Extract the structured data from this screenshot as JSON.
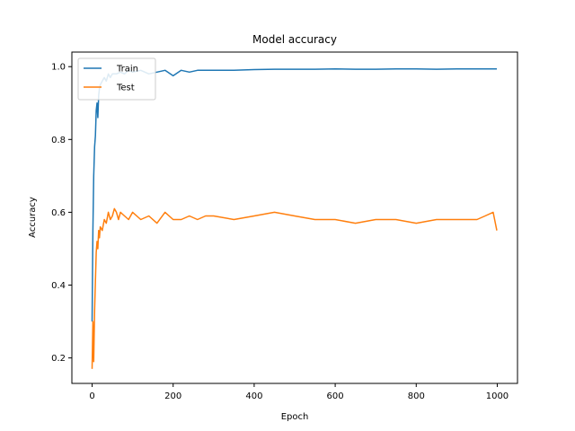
{
  "chart_data": {
    "type": "line",
    "title": "Model accuracy",
    "xlabel": "Epoch",
    "ylabel": "Accuracy",
    "xlim": [
      -50,
      1050
    ],
    "ylim": [
      0.13,
      1.04
    ],
    "xticks": [
      0,
      200,
      400,
      600,
      800,
      1000
    ],
    "yticks": [
      0.2,
      0.4,
      0.6,
      0.8,
      1.0
    ],
    "xtick_labels": [
      "0",
      "200",
      "400",
      "600",
      "800",
      "1000"
    ],
    "ytick_labels": [
      "0.2",
      "0.4",
      "0.6",
      "0.8",
      "1.0"
    ],
    "legend_position": "top-left",
    "grid": false,
    "series": [
      {
        "name": "Train",
        "color": "#1f77b4",
        "x": [
          0,
          2,
          4,
          6,
          8,
          10,
          12,
          14,
          16,
          18,
          20,
          25,
          30,
          35,
          40,
          45,
          50,
          60,
          70,
          80,
          90,
          100,
          120,
          140,
          160,
          180,
          200,
          220,
          240,
          260,
          280,
          300,
          350,
          400,
          450,
          500,
          550,
          600,
          650,
          700,
          750,
          800,
          850,
          900,
          950,
          999
        ],
        "y": [
          0.3,
          0.55,
          0.7,
          0.78,
          0.81,
          0.88,
          0.9,
          0.86,
          0.92,
          0.94,
          0.95,
          0.96,
          0.97,
          0.96,
          0.98,
          0.97,
          0.98,
          0.98,
          0.985,
          0.98,
          0.99,
          0.985,
          0.99,
          0.98,
          0.985,
          0.99,
          0.975,
          0.99,
          0.985,
          0.99,
          0.99,
          0.99,
          0.99,
          0.992,
          0.993,
          0.993,
          0.993,
          0.994,
          0.993,
          0.993,
          0.994,
          0.994,
          0.993,
          0.994,
          0.994,
          0.994
        ]
      },
      {
        "name": "Test",
        "color": "#ff7f0e",
        "x": [
          0,
          2,
          4,
          6,
          8,
          10,
          12,
          14,
          16,
          18,
          20,
          25,
          30,
          35,
          40,
          45,
          50,
          55,
          60,
          65,
          70,
          80,
          90,
          100,
          120,
          140,
          160,
          180,
          200,
          220,
          240,
          260,
          280,
          300,
          350,
          400,
          450,
          500,
          550,
          600,
          650,
          700,
          750,
          800,
          850,
          900,
          950,
          970,
          990,
          999
        ],
        "y": [
          0.17,
          0.3,
          0.19,
          0.33,
          0.41,
          0.49,
          0.52,
          0.5,
          0.55,
          0.53,
          0.56,
          0.55,
          0.58,
          0.57,
          0.6,
          0.58,
          0.59,
          0.61,
          0.6,
          0.58,
          0.6,
          0.59,
          0.58,
          0.6,
          0.58,
          0.59,
          0.57,
          0.6,
          0.58,
          0.58,
          0.59,
          0.58,
          0.59,
          0.59,
          0.58,
          0.59,
          0.6,
          0.59,
          0.58,
          0.58,
          0.57,
          0.58,
          0.58,
          0.57,
          0.58,
          0.58,
          0.58,
          0.59,
          0.6,
          0.55
        ]
      }
    ]
  }
}
